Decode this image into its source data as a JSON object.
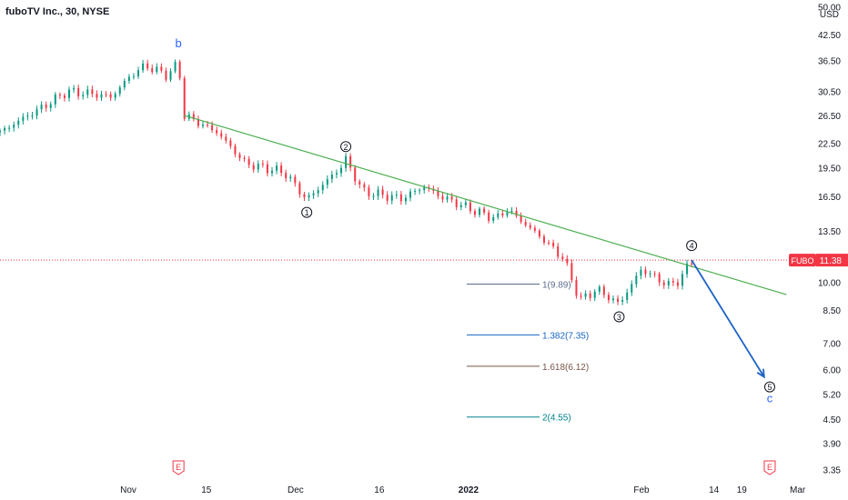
{
  "header": {
    "title": "fuboTV Inc., 30, NYSE"
  },
  "price_axis": {
    "unit": "USD",
    "ticks": [
      "50.00",
      "42.50",
      "36.50",
      "30.50",
      "26.50",
      "22.50",
      "19.50",
      "16.50",
      "13.50",
      "10.00",
      "8.50",
      "7.00",
      "6.00",
      "5.20",
      "4.50",
      "3.90",
      "3.35"
    ]
  },
  "time_axis": {
    "ticks": [
      "Nov",
      "15",
      "Dec",
      "16",
      "2022",
      "Feb",
      "14",
      "19",
      "Mar"
    ]
  },
  "last_price": {
    "symbol": "FUBO",
    "value": "11.38",
    "color": "#f23645"
  },
  "earnings_markers": [
    "E",
    "E"
  ],
  "colors": {
    "up": "#089981",
    "down": "#f23645",
    "trendline": "#4caf50",
    "projection": "#1e63c6",
    "wave_letter": "#2962ff"
  },
  "chart_data": {
    "type": "candlestick",
    "title": "fuboTV Inc., 30, NYSE",
    "y_scale": "log",
    "ylim": [
      3.2,
      52
    ],
    "x_range": [
      "2021-10-09",
      "2022-03-04"
    ],
    "price_path": [
      [
        "2021-10-09",
        24.0
      ],
      [
        "2021-10-13",
        26.0
      ],
      [
        "2021-10-17",
        28.0
      ],
      [
        "2021-10-21",
        30.5
      ],
      [
        "2021-10-26",
        30.0
      ],
      [
        "2021-10-29",
        29.5
      ],
      [
        "2021-11-01",
        33.0
      ],
      [
        "2021-11-04",
        35.5
      ],
      [
        "2021-11-08",
        33.5
      ],
      [
        "2021-11-10",
        36.0
      ],
      [
        "2021-11-11",
        26.5
      ],
      [
        "2021-11-17",
        24.0
      ],
      [
        "2021-11-22",
        20.0
      ],
      [
        "2021-11-29",
        19.0
      ],
      [
        "2021-12-03",
        16.2
      ],
      [
        "2021-12-09",
        19.5
      ],
      [
        "2021-12-10",
        20.5
      ],
      [
        "2021-12-13",
        17.0
      ],
      [
        "2021-12-20",
        16.3
      ],
      [
        "2021-12-24",
        17.5
      ],
      [
        "2021-12-27",
        16.5
      ],
      [
        "2022-01-03",
        15.0
      ],
      [
        "2022-01-06",
        14.5
      ],
      [
        "2022-01-08",
        15.3
      ],
      [
        "2022-01-14",
        13.0
      ],
      [
        "2022-01-18",
        11.5
      ],
      [
        "2022-01-21",
        9.0
      ],
      [
        "2022-01-24",
        9.6
      ],
      [
        "2022-01-28",
        8.8
      ],
      [
        "2022-02-01",
        10.8
      ],
      [
        "2022-02-06",
        9.8
      ],
      [
        "2022-02-08",
        10.2
      ],
      [
        "2022-02-10",
        11.38
      ]
    ],
    "last_value": 11.38,
    "wave_labels": [
      {
        "label": "b",
        "date": "2021-11-10",
        "price": 37.0
      },
      {
        "label": "1",
        "date": "2021-12-03",
        "price": 16.2
      },
      {
        "label": "2",
        "date": "2021-12-10",
        "price": 20.5
      },
      {
        "label": "3",
        "date": "2022-01-28",
        "price": 8.8
      },
      {
        "label": "4",
        "date": "2022-02-10",
        "price": 11.5
      },
      {
        "label": "5",
        "date": "2022-02-24",
        "price": 5.6
      },
      {
        "label": "c",
        "date": "2022-02-24",
        "price": 5.6
      }
    ],
    "trendline": {
      "from": [
        "2021-11-11",
        26.5
      ],
      "to": [
        "2022-02-27",
        9.3
      ]
    },
    "projection": {
      "from": [
        "2022-02-10",
        11.38
      ],
      "to": [
        "2022-02-23",
        5.75
      ]
    },
    "fib_levels": [
      {
        "label": "1(9.89)",
        "value": 9.89,
        "color": "#5b6a8a"
      },
      {
        "label": "1.382(7.35)",
        "value": 7.35,
        "color": "#1565c0"
      },
      {
        "label": "1.618(6.12)",
        "value": 6.12,
        "color": "#795548"
      },
      {
        "label": "2(4.55)",
        "value": 4.55,
        "color": "#00838f"
      }
    ]
  }
}
